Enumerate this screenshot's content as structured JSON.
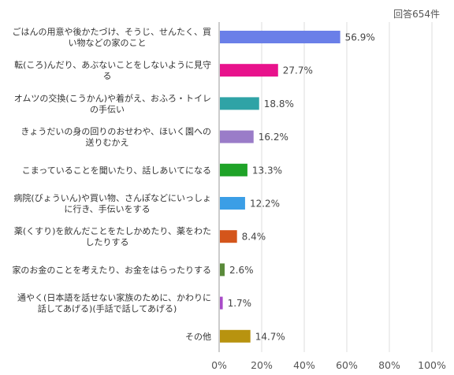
{
  "chart_data": {
    "type": "bar",
    "orientation": "horizontal",
    "count_label": "回答654件",
    "categories": [
      [
        "ごはんの用意や後かたづけ、そうじ、せんたく、買",
        "い物などの家のこと"
      ],
      [
        "転(ころ)んだり、あぶないことをしないように見守",
        "る"
      ],
      [
        "オムツの交換(こうかん)や着がえ、おふろ・トイレ",
        "の手伝い"
      ],
      [
        "きょうだいの身の回りのおせわや、ほいく園への",
        "送りむかえ"
      ],
      [
        "こまっていることを聞いたり、話しあいてになる"
      ],
      [
        "病院(びょういん)や買い物、さんぽなどにいっしょ",
        "に行き、手伝いをする"
      ],
      [
        "薬(くすり)を飲んだことをたしかめたり、薬をわた",
        "したりする"
      ],
      [
        "家のお金のことを考えたり、お金をはらったりする"
      ],
      [
        "通やく(日本語を話せない家族のために、かわりに",
        "話してあげる)(手話で話してあげる)"
      ],
      [
        "その他"
      ]
    ],
    "values": [
      56.9,
      27.7,
      18.8,
      16.2,
      13.3,
      12.2,
      8.4,
      2.6,
      1.7,
      14.7
    ],
    "value_labels": [
      "56.9%",
      "27.7%",
      "18.8%",
      "16.2%",
      "13.3%",
      "12.2%",
      "8.4%",
      "2.6%",
      "1.7%",
      "14.7%"
    ],
    "colors": [
      "#6a7fe8",
      "#e8128c",
      "#2fa3a6",
      "#9a7cc8",
      "#1fa328",
      "#3b9ee6",
      "#d4551b",
      "#5a8a3a",
      "#a84ac8",
      "#b8930f"
    ],
    "x_ticks": [
      0,
      20,
      40,
      60,
      80,
      100
    ],
    "x_tick_labels": [
      "0%",
      "20%",
      "40%",
      "60%",
      "80%",
      "100%"
    ],
    "xlim": [
      0,
      100
    ],
    "grid": true,
    "xlabel": "",
    "ylabel": "",
    "title": ""
  }
}
